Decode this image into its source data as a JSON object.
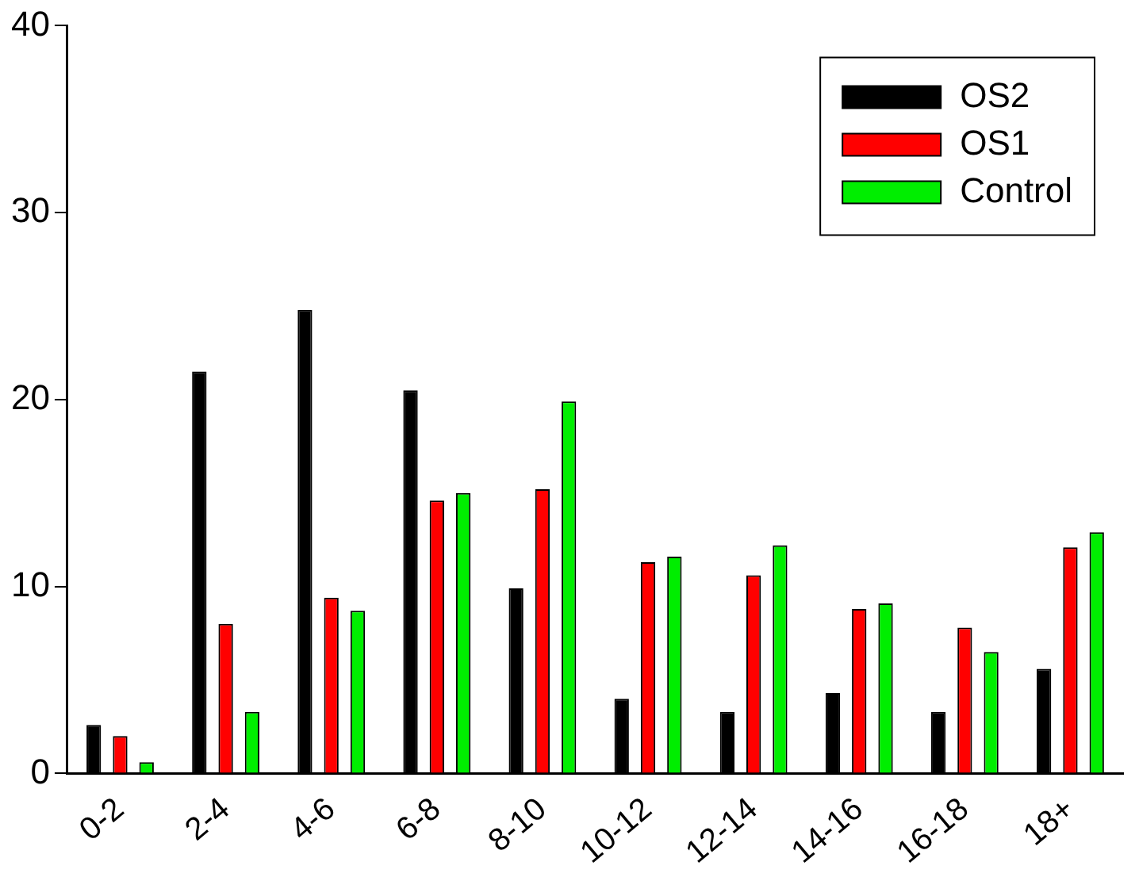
{
  "chart_data": {
    "type": "bar",
    "categories": [
      "0-2",
      "2-4",
      "4-6",
      "6-8",
      "8-10",
      "10-12",
      "12-14",
      "14-16",
      "16-18",
      "18+"
    ],
    "series": [
      {
        "name": "OS2",
        "color": "#000000",
        "values": [
          2.6,
          21.5,
          24.8,
          20.5,
          9.9,
          4.0,
          3.3,
          4.3,
          3.3,
          5.6
        ]
      },
      {
        "name": "OS1",
        "color": "#ff0000",
        "values": [
          2.0,
          8.0,
          9.4,
          14.6,
          15.2,
          11.3,
          10.6,
          8.8,
          7.8,
          12.1
        ]
      },
      {
        "name": "Control",
        "color": "#00ee00",
        "values": [
          0.6,
          3.3,
          8.7,
          15.0,
          19.9,
          11.6,
          12.2,
          9.1,
          6.5,
          12.9
        ]
      }
    ],
    "ylim": [
      0,
      40
    ],
    "yticks": [
      0,
      10,
      20,
      30,
      40
    ],
    "grid": false,
    "legend": "top right"
  }
}
